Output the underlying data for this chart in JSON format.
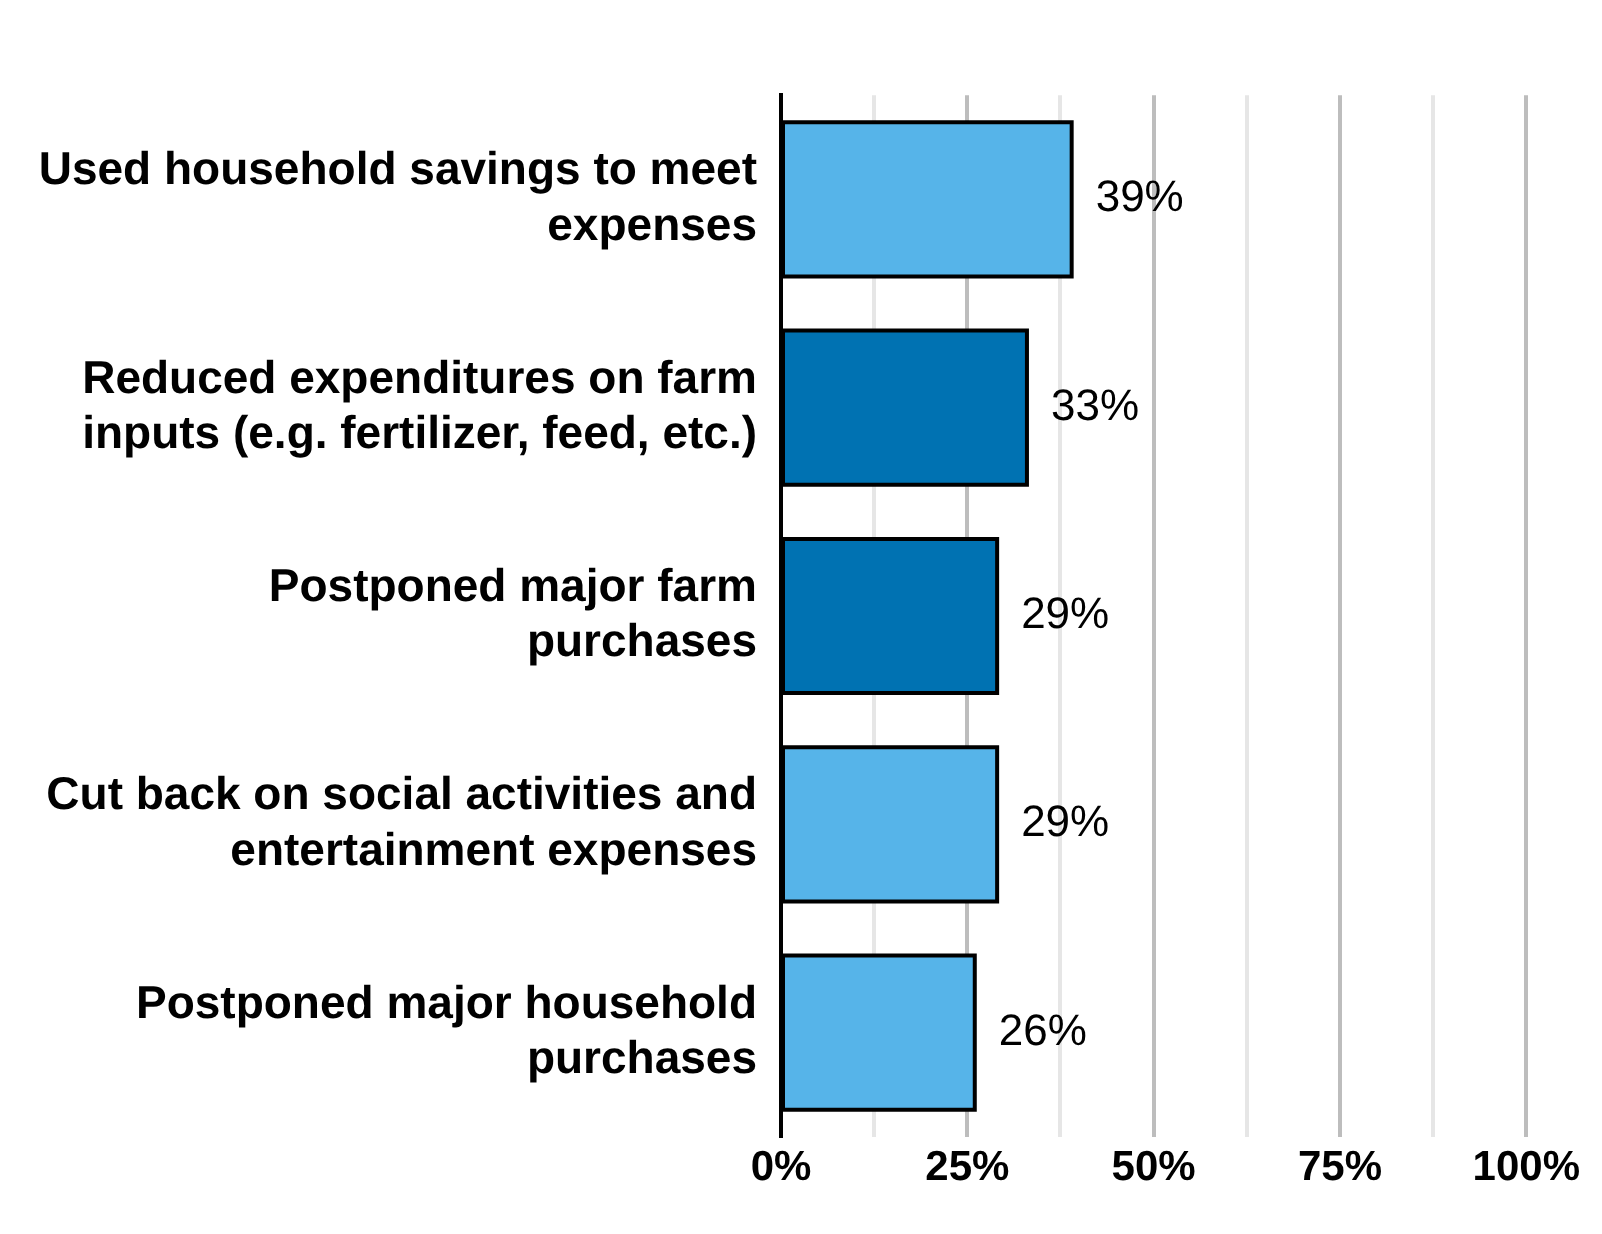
{
  "chart_data": {
    "type": "bar",
    "orientation": "horizontal",
    "categories": [
      "Used household savings to meet expenses",
      "Reduced expenditures on farm inputs (e.g. fertilizer, feed, etc.)",
      "Postponed major farm purchases",
      "Cut back on social activities and entertainment expenses",
      "Postponed major household purchases"
    ],
    "values": [
      39,
      33,
      29,
      29,
      26
    ],
    "colors": [
      "#56b4e9",
      "#0072b2",
      "#0072b2",
      "#56b4e9",
      "#56b4e9"
    ],
    "value_labels": [
      "39%",
      "33%",
      "29%",
      "29%",
      "26%"
    ],
    "xlim": [
      0,
      100
    ],
    "xticks": [
      {
        "value": 0,
        "label": "0%"
      },
      {
        "value": 12.5,
        "label": null
      },
      {
        "value": 25,
        "label": "25%"
      },
      {
        "value": 37.5,
        "label": null
      },
      {
        "value": 50,
        "label": "50%"
      },
      {
        "value": 62.5,
        "label": null
      },
      {
        "value": 75,
        "label": "75%"
      },
      {
        "value": 87.5,
        "label": null
      },
      {
        "value": 100,
        "label": "100%"
      }
    ],
    "grid": "x",
    "legend": false
  }
}
